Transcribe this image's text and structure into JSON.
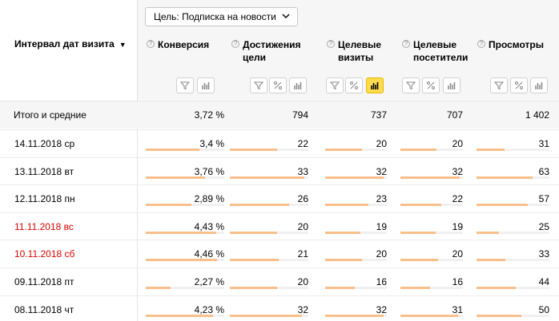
{
  "goal_selector": {
    "label": "Цель: Подписка на новости",
    "icon": "chevron-down-icon"
  },
  "dimension": {
    "title": "Интервал дат визита",
    "sort_arrow": "▼"
  },
  "columns": [
    {
      "key": "conversion",
      "label": "Конверсия"
    },
    {
      "key": "goal_reaches",
      "label_lines": [
        "Достижения",
        "цели"
      ]
    },
    {
      "key": "target_visits",
      "label_lines": [
        "Целевые",
        "визиты"
      ]
    },
    {
      "key": "target_visitors",
      "label_lines": [
        "Целевые",
        "посетители"
      ]
    },
    {
      "key": "pageviews",
      "label": "Просмотры"
    }
  ],
  "tool_icons": [
    "filter-icon",
    "percent-icon",
    "chart-icon"
  ],
  "totals": {
    "label": "Итого и средние",
    "conversion": "3,72 %",
    "goal_reaches": "794",
    "target_visits": "737",
    "target_visitors": "707",
    "pageviews": "1 402"
  },
  "rows": [
    {
      "date": "14.11.2018 ср",
      "weekend": false,
      "conversion": "3,4 %",
      "goal_reaches": "22",
      "target_visits": "20",
      "target_visitors": "20",
      "pageviews": "31",
      "fill": [
        0.68,
        0.6,
        0.6,
        0.58,
        0.38
      ]
    },
    {
      "date": "13.11.2018 вт",
      "weekend": false,
      "conversion": "3,76 %",
      "goal_reaches": "33",
      "target_visits": "32",
      "target_visitors": "32",
      "pageviews": "63",
      "fill": [
        0.76,
        0.95,
        0.95,
        0.95,
        0.77
      ]
    },
    {
      "date": "12.11.2018 пн",
      "weekend": false,
      "conversion": "2,89 %",
      "goal_reaches": "26",
      "target_visits": "23",
      "target_visitors": "22",
      "pageviews": "57",
      "fill": [
        0.58,
        0.75,
        0.7,
        0.66,
        0.7
      ]
    },
    {
      "date": "11.11.2018 вс",
      "weekend": true,
      "conversion": "4,43 %",
      "goal_reaches": "20",
      "target_visits": "19",
      "target_visitors": "19",
      "pageviews": "25",
      "fill": [
        0.9,
        0.6,
        0.57,
        0.57,
        0.31
      ]
    },
    {
      "date": "10.11.2018 сб",
      "weekend": true,
      "conversion": "4,46 %",
      "goal_reaches": "21",
      "target_visits": "20",
      "target_visitors": "20",
      "pageviews": "33",
      "fill": [
        0.91,
        0.62,
        0.6,
        0.6,
        0.4
      ]
    },
    {
      "date": "09.11.2018 пт",
      "weekend": false,
      "conversion": "2,27 %",
      "goal_reaches": "20",
      "target_visits": "16",
      "target_visitors": "16",
      "pageviews": "44",
      "fill": [
        0.32,
        0.6,
        0.48,
        0.48,
        0.54
      ]
    },
    {
      "date": "08.11.2018 чт",
      "weekend": false,
      "conversion": "4,23 %",
      "goal_reaches": "32",
      "target_visits": "32",
      "target_visitors": "31",
      "pageviews": "50",
      "fill": [
        0.86,
        0.92,
        0.95,
        0.92,
        0.61
      ]
    }
  ],
  "colors": {
    "bar_fill": "#f9bf8b",
    "bar_track": "#f0f0f0",
    "weekend_text": "#dd0000",
    "active_tool": "#ffdb4d"
  }
}
